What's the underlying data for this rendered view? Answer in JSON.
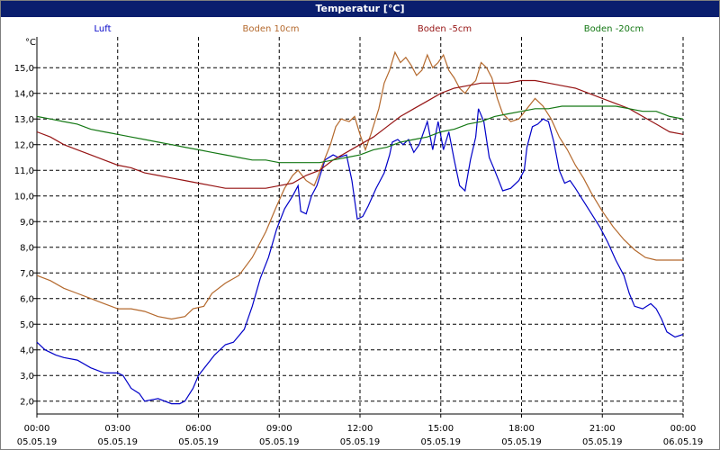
{
  "title": "Temperatur [°C]",
  "chart_data": {
    "type": "line",
    "title": "Temperatur [°C]",
    "ylabel": "°C",
    "xlim": [
      0,
      24
    ],
    "ylim": [
      1.5,
      16.2
    ],
    "grid": true,
    "legend_position": "top",
    "y_ticks": [
      "2,0",
      "3,0",
      "4,0",
      "5,0",
      "6,0",
      "7,0",
      "8,0",
      "9,0",
      "10,0",
      "11,0",
      "12,0",
      "13,0",
      "14,0",
      "15,0"
    ],
    "y_tick_values": [
      2,
      3,
      4,
      5,
      6,
      7,
      8,
      9,
      10,
      11,
      12,
      13,
      14,
      15
    ],
    "x_ticks": [
      {
        "value": 0,
        "time": "00:00",
        "date": "05.05.19"
      },
      {
        "value": 3,
        "time": "03:00",
        "date": "05.05.19"
      },
      {
        "value": 6,
        "time": "06:00",
        "date": "05.05.19"
      },
      {
        "value": 9,
        "time": "09:00",
        "date": "05.05.19"
      },
      {
        "value": 12,
        "time": "12:00",
        "date": "05.05.19"
      },
      {
        "value": 15,
        "time": "15:00",
        "date": "05.05.19"
      },
      {
        "value": 18,
        "time": "18:00",
        "date": "05.05.19"
      },
      {
        "value": 21,
        "time": "21:00",
        "date": "05.05.19"
      },
      {
        "value": 24,
        "time": "00:00",
        "date": "06.05.19"
      }
    ],
    "series": [
      {
        "name": "Luft",
        "color": "#0000c8",
        "points": [
          [
            0,
            4.3
          ],
          [
            0.3,
            4.0
          ],
          [
            0.7,
            3.8
          ],
          [
            1.0,
            3.7
          ],
          [
            1.5,
            3.6
          ],
          [
            2.0,
            3.3
          ],
          [
            2.5,
            3.1
          ],
          [
            3.0,
            3.1
          ],
          [
            3.2,
            3.0
          ],
          [
            3.5,
            2.5
          ],
          [
            3.8,
            2.3
          ],
          [
            4.0,
            2.0
          ],
          [
            4.5,
            2.1
          ],
          [
            5.0,
            1.9
          ],
          [
            5.3,
            1.9
          ],
          [
            5.5,
            2.0
          ],
          [
            5.8,
            2.5
          ],
          [
            6.0,
            3.0
          ],
          [
            6.3,
            3.4
          ],
          [
            6.6,
            3.8
          ],
          [
            7.0,
            4.2
          ],
          [
            7.3,
            4.3
          ],
          [
            7.7,
            4.8
          ],
          [
            8.0,
            5.7
          ],
          [
            8.3,
            6.8
          ],
          [
            8.6,
            7.6
          ],
          [
            8.9,
            8.7
          ],
          [
            9.2,
            9.5
          ],
          [
            9.5,
            10.0
          ],
          [
            9.7,
            10.4
          ],
          [
            9.8,
            9.4
          ],
          [
            10.0,
            9.3
          ],
          [
            10.2,
            10.0
          ],
          [
            10.4,
            10.4
          ],
          [
            10.7,
            11.4
          ],
          [
            11.0,
            11.6
          ],
          [
            11.2,
            11.5
          ],
          [
            11.5,
            11.6
          ],
          [
            11.7,
            10.6
          ],
          [
            11.9,
            9.1
          ],
          [
            12.1,
            9.2
          ],
          [
            12.3,
            9.6
          ],
          [
            12.6,
            10.3
          ],
          [
            12.9,
            10.9
          ],
          [
            13.1,
            11.6
          ],
          [
            13.2,
            12.1
          ],
          [
            13.4,
            12.2
          ],
          [
            13.6,
            12.0
          ],
          [
            13.8,
            12.2
          ],
          [
            14.0,
            11.7
          ],
          [
            14.2,
            12.0
          ],
          [
            14.5,
            12.9
          ],
          [
            14.7,
            11.8
          ],
          [
            14.9,
            12.9
          ],
          [
            15.1,
            11.8
          ],
          [
            15.3,
            12.5
          ],
          [
            15.5,
            11.4
          ],
          [
            15.7,
            10.4
          ],
          [
            15.9,
            10.2
          ],
          [
            16.1,
            11.4
          ],
          [
            16.3,
            12.3
          ],
          [
            16.4,
            13.4
          ],
          [
            16.6,
            12.9
          ],
          [
            16.8,
            11.5
          ],
          [
            17.0,
            11.0
          ],
          [
            17.3,
            10.2
          ],
          [
            17.6,
            10.3
          ],
          [
            17.9,
            10.6
          ],
          [
            18.1,
            11.0
          ],
          [
            18.2,
            11.9
          ],
          [
            18.4,
            12.7
          ],
          [
            18.6,
            12.8
          ],
          [
            18.8,
            13.0
          ],
          [
            19.0,
            12.9
          ],
          [
            19.2,
            12.1
          ],
          [
            19.4,
            11.0
          ],
          [
            19.6,
            10.5
          ],
          [
            19.8,
            10.6
          ],
          [
            20.0,
            10.3
          ],
          [
            20.3,
            9.8
          ],
          [
            20.6,
            9.3
          ],
          [
            20.9,
            8.8
          ],
          [
            21.2,
            8.2
          ],
          [
            21.5,
            7.5
          ],
          [
            21.8,
            6.9
          ],
          [
            22.0,
            6.2
          ],
          [
            22.2,
            5.7
          ],
          [
            22.5,
            5.6
          ],
          [
            22.8,
            5.8
          ],
          [
            23.0,
            5.6
          ],
          [
            23.2,
            5.2
          ],
          [
            23.4,
            4.7
          ],
          [
            23.7,
            4.5
          ],
          [
            24.0,
            4.6
          ]
        ]
      },
      {
        "name": "Boden 10cm",
        "color": "#b4692d",
        "points": [
          [
            0,
            6.9
          ],
          [
            0.5,
            6.7
          ],
          [
            1.0,
            6.4
          ],
          [
            1.5,
            6.2
          ],
          [
            2.0,
            6.0
          ],
          [
            2.5,
            5.8
          ],
          [
            3.0,
            5.6
          ],
          [
            3.5,
            5.6
          ],
          [
            4.0,
            5.5
          ],
          [
            4.5,
            5.3
          ],
          [
            5.0,
            5.2
          ],
          [
            5.5,
            5.3
          ],
          [
            5.8,
            5.6
          ],
          [
            6.2,
            5.7
          ],
          [
            6.5,
            6.2
          ],
          [
            7.0,
            6.6
          ],
          [
            7.5,
            6.9
          ],
          [
            8.0,
            7.6
          ],
          [
            8.5,
            8.6
          ],
          [
            8.9,
            9.6
          ],
          [
            9.2,
            10.3
          ],
          [
            9.5,
            10.8
          ],
          [
            9.7,
            11.0
          ],
          [
            10.0,
            10.6
          ],
          [
            10.3,
            10.4
          ],
          [
            10.6,
            11.2
          ],
          [
            10.9,
            12.0
          ],
          [
            11.1,
            12.7
          ],
          [
            11.3,
            13.0
          ],
          [
            11.6,
            12.9
          ],
          [
            11.8,
            13.1
          ],
          [
            12.0,
            12.4
          ],
          [
            12.2,
            11.8
          ],
          [
            12.4,
            12.4
          ],
          [
            12.7,
            13.4
          ],
          [
            12.9,
            14.4
          ],
          [
            13.1,
            14.9
          ],
          [
            13.3,
            15.6
          ],
          [
            13.5,
            15.2
          ],
          [
            13.7,
            15.4
          ],
          [
            13.9,
            15.1
          ],
          [
            14.1,
            14.7
          ],
          [
            14.3,
            14.9
          ],
          [
            14.5,
            15.5
          ],
          [
            14.7,
            15.0
          ],
          [
            14.9,
            15.2
          ],
          [
            15.1,
            15.5
          ],
          [
            15.3,
            14.9
          ],
          [
            15.5,
            14.6
          ],
          [
            15.7,
            14.2
          ],
          [
            15.9,
            14.0
          ],
          [
            16.1,
            14.3
          ],
          [
            16.3,
            14.5
          ],
          [
            16.5,
            15.2
          ],
          [
            16.7,
            15.0
          ],
          [
            16.9,
            14.6
          ],
          [
            17.1,
            13.8
          ],
          [
            17.3,
            13.2
          ],
          [
            17.6,
            12.9
          ],
          [
            17.9,
            13.0
          ],
          [
            18.2,
            13.4
          ],
          [
            18.5,
            13.8
          ],
          [
            18.8,
            13.5
          ],
          [
            19.1,
            13.0
          ],
          [
            19.4,
            12.3
          ],
          [
            19.7,
            11.8
          ],
          [
            20.0,
            11.2
          ],
          [
            20.3,
            10.7
          ],
          [
            20.6,
            10.1
          ],
          [
            21.0,
            9.4
          ],
          [
            21.4,
            8.8
          ],
          [
            21.8,
            8.3
          ],
          [
            22.2,
            7.9
          ],
          [
            22.6,
            7.6
          ],
          [
            23.0,
            7.5
          ],
          [
            23.5,
            7.5
          ],
          [
            24.0,
            7.5
          ]
        ]
      },
      {
        "name": "Boden -5cm",
        "color": "#961414",
        "points": [
          [
            0,
            12.5
          ],
          [
            0.5,
            12.3
          ],
          [
            1.0,
            12.0
          ],
          [
            1.5,
            11.8
          ],
          [
            2.0,
            11.6
          ],
          [
            2.5,
            11.4
          ],
          [
            3.0,
            11.2
          ],
          [
            3.5,
            11.1
          ],
          [
            4.0,
            10.9
          ],
          [
            4.5,
            10.8
          ],
          [
            5.0,
            10.7
          ],
          [
            5.5,
            10.6
          ],
          [
            6.0,
            10.5
          ],
          [
            6.5,
            10.4
          ],
          [
            7.0,
            10.3
          ],
          [
            7.5,
            10.3
          ],
          [
            8.0,
            10.3
          ],
          [
            8.5,
            10.3
          ],
          [
            9.0,
            10.4
          ],
          [
            9.5,
            10.5
          ],
          [
            10.0,
            10.8
          ],
          [
            10.5,
            11.0
          ],
          [
            11.0,
            11.4
          ],
          [
            11.5,
            11.7
          ],
          [
            12.0,
            12.0
          ],
          [
            12.5,
            12.3
          ],
          [
            13.0,
            12.7
          ],
          [
            13.5,
            13.1
          ],
          [
            14.0,
            13.4
          ],
          [
            14.5,
            13.7
          ],
          [
            15.0,
            14.0
          ],
          [
            15.5,
            14.2
          ],
          [
            16.0,
            14.3
          ],
          [
            16.5,
            14.4
          ],
          [
            17.0,
            14.4
          ],
          [
            17.5,
            14.4
          ],
          [
            18.0,
            14.5
          ],
          [
            18.5,
            14.5
          ],
          [
            19.0,
            14.4
          ],
          [
            19.5,
            14.3
          ],
          [
            20.0,
            14.2
          ],
          [
            20.5,
            14.0
          ],
          [
            21.0,
            13.8
          ],
          [
            21.5,
            13.6
          ],
          [
            22.0,
            13.4
          ],
          [
            22.5,
            13.1
          ],
          [
            23.0,
            12.8
          ],
          [
            23.5,
            12.5
          ],
          [
            24.0,
            12.4
          ]
        ]
      },
      {
        "name": "Boden -20cm",
        "color": "#147814",
        "points": [
          [
            0,
            13.1
          ],
          [
            0.5,
            13.0
          ],
          [
            1.0,
            12.9
          ],
          [
            1.5,
            12.8
          ],
          [
            2.0,
            12.6
          ],
          [
            2.5,
            12.5
          ],
          [
            3.0,
            12.4
          ],
          [
            3.5,
            12.3
          ],
          [
            4.0,
            12.2
          ],
          [
            4.5,
            12.1
          ],
          [
            5.0,
            12.0
          ],
          [
            5.5,
            11.9
          ],
          [
            6.0,
            11.8
          ],
          [
            6.5,
            11.7
          ],
          [
            7.0,
            11.6
          ],
          [
            7.5,
            11.5
          ],
          [
            8.0,
            11.4
          ],
          [
            8.5,
            11.4
          ],
          [
            9.0,
            11.3
          ],
          [
            9.5,
            11.3
          ],
          [
            10.0,
            11.3
          ],
          [
            10.5,
            11.3
          ],
          [
            11.0,
            11.4
          ],
          [
            11.5,
            11.5
          ],
          [
            12.0,
            11.6
          ],
          [
            12.5,
            11.8
          ],
          [
            13.0,
            11.9
          ],
          [
            13.5,
            12.1
          ],
          [
            14.0,
            12.2
          ],
          [
            14.5,
            12.3
          ],
          [
            15.0,
            12.5
          ],
          [
            15.5,
            12.6
          ],
          [
            16.0,
            12.8
          ],
          [
            16.5,
            12.9
          ],
          [
            17.0,
            13.1
          ],
          [
            17.5,
            13.2
          ],
          [
            18.0,
            13.3
          ],
          [
            18.5,
            13.4
          ],
          [
            19.0,
            13.4
          ],
          [
            19.5,
            13.5
          ],
          [
            20.0,
            13.5
          ],
          [
            20.5,
            13.5
          ],
          [
            21.0,
            13.5
          ],
          [
            21.5,
            13.5
          ],
          [
            22.0,
            13.4
          ],
          [
            22.5,
            13.3
          ],
          [
            23.0,
            13.3
          ],
          [
            23.5,
            13.1
          ],
          [
            24.0,
            13.0
          ]
        ]
      }
    ]
  }
}
